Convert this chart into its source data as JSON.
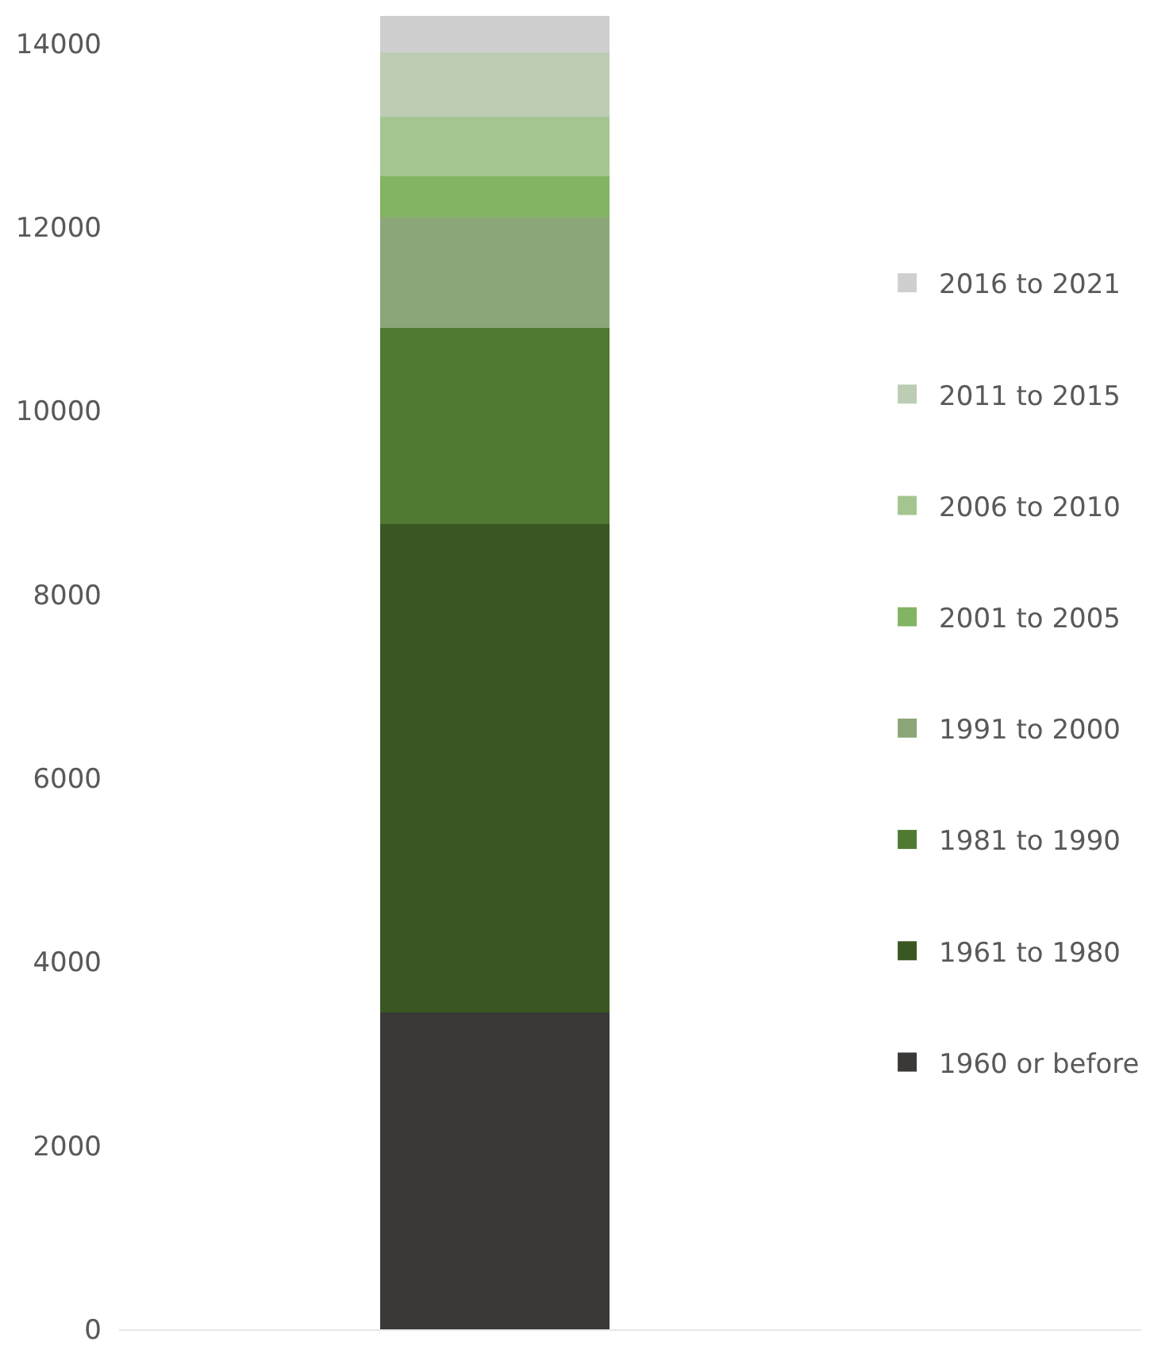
{
  "chart_data": {
    "type": "bar",
    "stacked": true,
    "categories": [
      null
    ],
    "series": [
      {
        "name": "1960 or before",
        "color": "#3a3938",
        "values": [
          3450
        ]
      },
      {
        "name": "1961 to 1980",
        "color": "#3a5723",
        "values": [
          5320
        ]
      },
      {
        "name": "1981 to 1990",
        "color": "#507a32",
        "values": [
          2130
        ]
      },
      {
        "name": "1991 to 2000",
        "color": "#8ba678",
        "values": [
          1200
        ]
      },
      {
        "name": "2001 to 2005",
        "color": "#82b464",
        "values": [
          450
        ]
      },
      {
        "name": "2006 to 2010",
        "color": "#a3c690",
        "values": [
          650
        ]
      },
      {
        "name": "2011 to 2015",
        "color": "#bdccb5",
        "values": [
          700
        ]
      },
      {
        "name": "2016 to 2021",
        "color": "#d0cfcf",
        "values": [
          400
        ]
      }
    ],
    "ylim": [
      0,
      14300
    ],
    "yticks": [
      0,
      2000,
      4000,
      6000,
      8000,
      10000,
      12000,
      14000
    ],
    "legend": "right",
    "tick_labels": "y"
  }
}
